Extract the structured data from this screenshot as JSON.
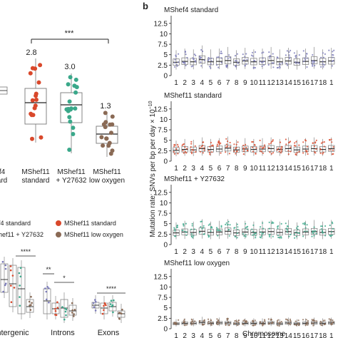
{
  "colors": {
    "mshef4": "#7a7ab8",
    "standard": "#d9482b",
    "y27632": "#3aa88a",
    "low_oxygen": "#8a6a55",
    "box": "#777777",
    "median": "#222222"
  },
  "panel_a": {
    "significance": "***",
    "groups": [
      {
        "tick": "f4",
        "tick2": "ard",
        "name": "MShef4 standard",
        "median_label": "",
        "median": 3.2
      },
      {
        "tick": "MShef11",
        "tick2": "standard",
        "name": "MShef11 standard",
        "median_label": "2.8",
        "median": 2.8
      },
      {
        "tick": "MShef11",
        "tick2": "+ Y27632",
        "name": "MShef11 + Y27632",
        "median_label": "3.0",
        "median": 3.0
      },
      {
        "tick": "MShef11",
        "tick2": "low oxygen",
        "name": "MShef11 low oxygen",
        "median_label": "1.3",
        "median": 1.3
      }
    ]
  },
  "legend": {
    "items": [
      "f4 standard",
      "MShef11 standard",
      "hef11 + Y27632",
      "MShef11 low oxygen"
    ]
  },
  "panel_c": {
    "categories": [
      {
        "label": "ntergenic",
        "significance": "****"
      },
      {
        "label": "Introns",
        "significance": "**",
        "significance2": "*"
      },
      {
        "label": "Exons",
        "significance": "****"
      }
    ]
  },
  "panel_b": {
    "panel_letter": "b",
    "ylabel": "Mutation rate: SNVs per bp per day × 10",
    "ylabel_exp": "−10",
    "xlabel": "Chromosome",
    "yticks": [
      "0",
      "2.5",
      "5",
      "7.5",
      "10",
      "12.5"
    ],
    "chromosomes": [
      "1",
      "2",
      "3",
      "4",
      "5",
      "6",
      "7",
      "8",
      "9",
      "10",
      "11",
      "12",
      "13",
      "14",
      "15",
      "16",
      "17",
      "18",
      "1"
    ],
    "panels": [
      {
        "title": "MShef4 standard",
        "medians": [
          3.2,
          3.4,
          3.3,
          3.8,
          3.3,
          3.4,
          3.6,
          3.2,
          3.5,
          3.3,
          3.4,
          3.6,
          3.3,
          3.5,
          3.2,
          3.4,
          3.6,
          3.3,
          3.5
        ]
      },
      {
        "title": "MShef11 standard",
        "medians": [
          2.6,
          2.8,
          2.7,
          3.0,
          2.8,
          2.9,
          3.1,
          2.7,
          2.9,
          2.8,
          2.9,
          3.0,
          2.8,
          3.0,
          2.7,
          2.9,
          3.0,
          2.8,
          3.0
        ]
      },
      {
        "title": "MShef11 + Y27632",
        "medians": [
          2.8,
          3.0,
          2.9,
          3.2,
          2.9,
          3.0,
          3.2,
          2.8,
          3.0,
          2.9,
          3.0,
          3.1,
          2.9,
          3.1,
          2.8,
          3.0,
          3.1,
          2.9,
          3.1
        ]
      },
      {
        "title": "MShef11 low oxygen",
        "medians": [
          1.2,
          1.3,
          1.3,
          1.5,
          1.3,
          1.4,
          1.4,
          1.2,
          1.3,
          1.3,
          1.3,
          1.4,
          1.2,
          1.4,
          1.2,
          1.3,
          1.4,
          1.3,
          1.4
        ]
      }
    ]
  },
  "chart_data": [
    {
      "type": "scatter",
      "categories": [
        "MShef4 standard",
        "MShef11 standard",
        "MShef11 + Y27632",
        "MShef11 low oxygen"
      ],
      "medians": [
        3.2,
        2.8,
        3.0,
        1.3
      ],
      "annotations": [
        "2.8",
        "3.0",
        "1.3",
        "***"
      ]
    },
    {
      "type": "scatter",
      "xlabel": "Chromosome",
      "ylabel": "Mutation rate: SNVs per bp per day × 10−10",
      "ylim": [
        0,
        14
      ],
      "series": [
        {
          "name": "MShef4 standard",
          "values": [
            3.2,
            3.4,
            3.3,
            3.8,
            3.3,
            3.4,
            3.6,
            3.2,
            3.5,
            3.3,
            3.4,
            3.6,
            3.3,
            3.5,
            3.2,
            3.4,
            3.6,
            3.3,
            3.5
          ]
        },
        {
          "name": "MShef11 standard",
          "values": [
            2.6,
            2.8,
            2.7,
            3.0,
            2.8,
            2.9,
            3.1,
            2.7,
            2.9,
            2.8,
            2.9,
            3.0,
            2.8,
            3.0,
            2.7,
            2.9,
            3.0,
            2.8,
            3.0
          ]
        },
        {
          "name": "MShef11 + Y27632",
          "values": [
            2.8,
            3.0,
            2.9,
            3.2,
            2.9,
            3.0,
            3.2,
            2.8,
            3.0,
            2.9,
            3.0,
            3.1,
            2.9,
            3.1,
            2.8,
            3.0,
            3.1,
            2.9,
            3.1
          ]
        },
        {
          "name": "MShef11 low oxygen",
          "values": [
            1.2,
            1.3,
            1.3,
            1.5,
            1.3,
            1.4,
            1.4,
            1.2,
            1.3,
            1.3,
            1.3,
            1.4,
            1.2,
            1.4,
            1.2,
            1.3,
            1.4,
            1.3,
            1.4
          ]
        }
      ]
    }
  ]
}
